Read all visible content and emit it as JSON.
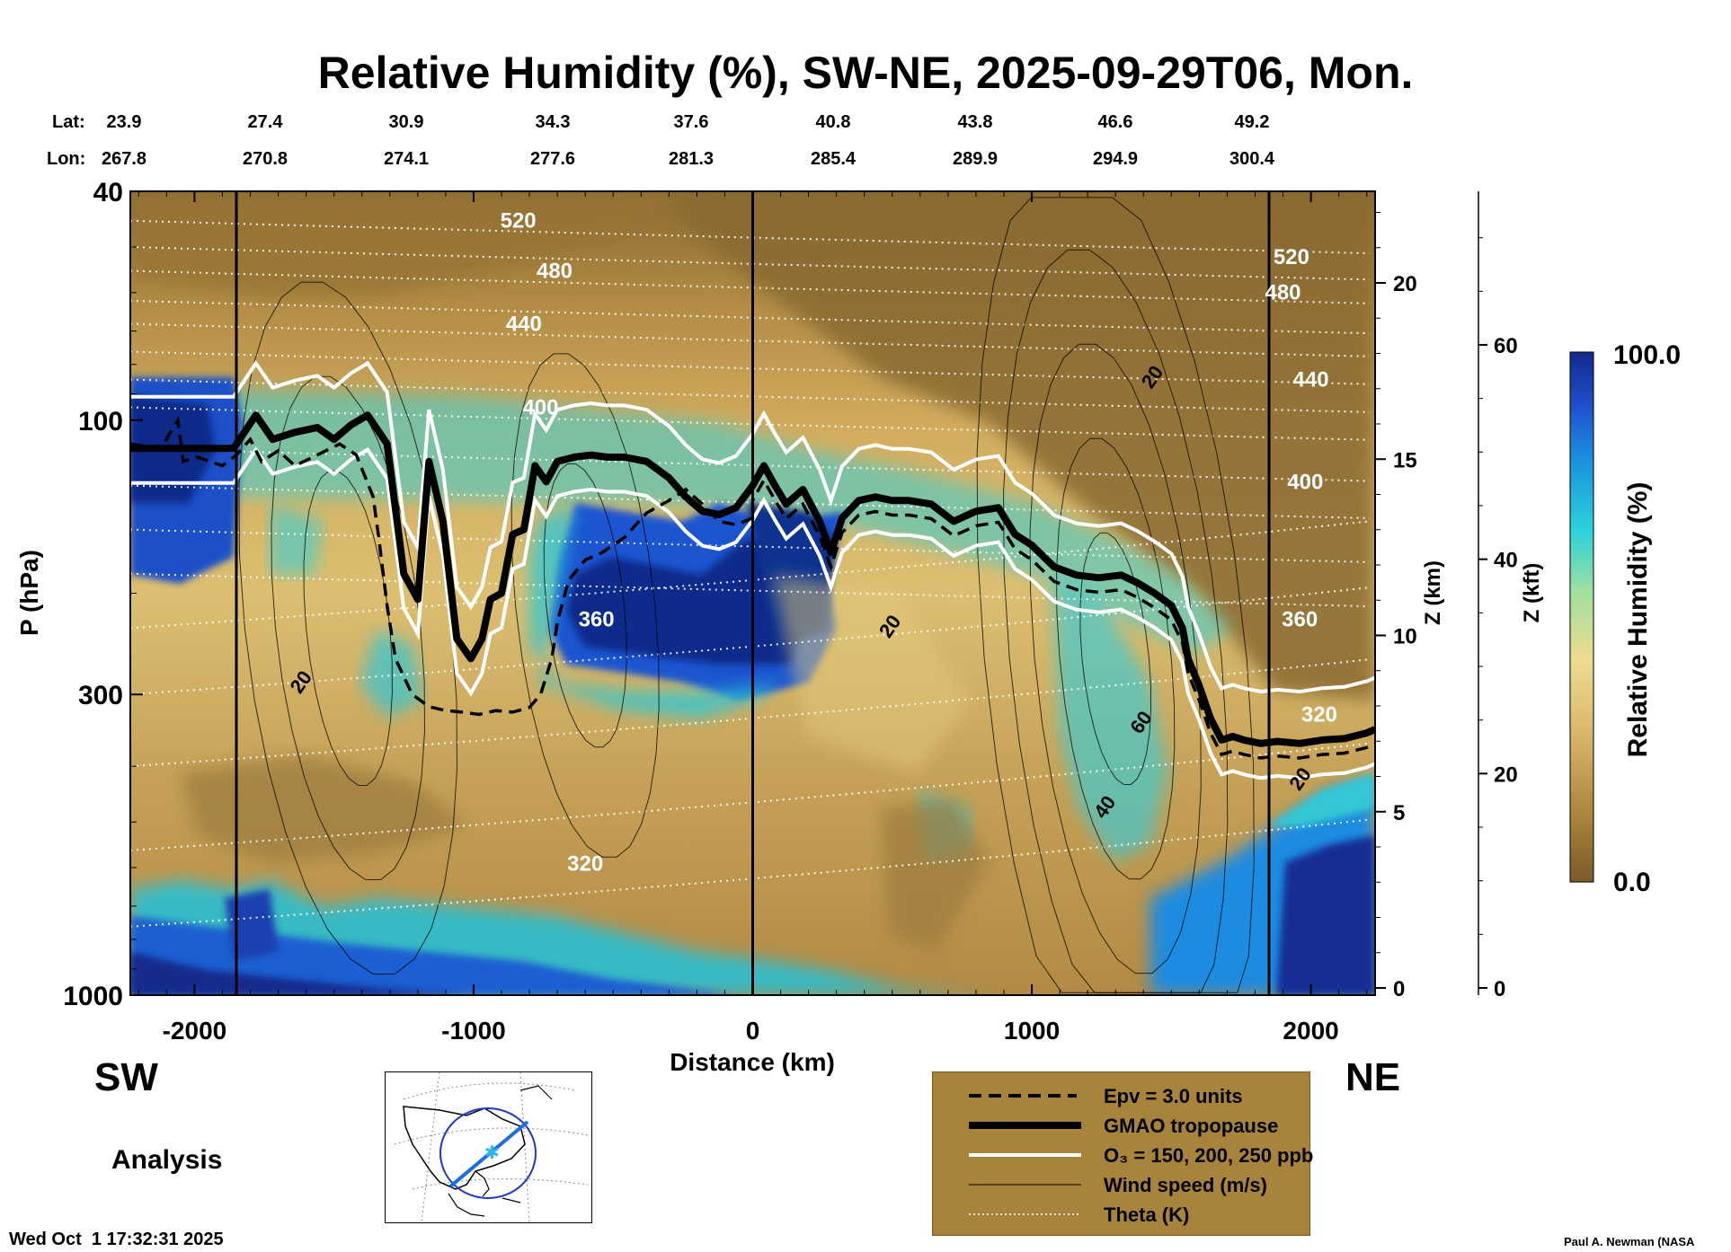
{
  "chart_data": {
    "type": "heatmap",
    "title": "Relative Humidity (%), SW-NE, 2025-09-29T06, Mon.",
    "xlabel": "Distance (km)",
    "ylabel": "P (hPa)",
    "y2label": "Z (km)",
    "y3label": "Z (kft)",
    "colorbar_label": "Relative Humidity (%)",
    "colorbar_max": "100.0",
    "colorbar_min": "0.0",
    "xlim": [
      -2230,
      2230
    ],
    "ylim": [
      1000,
      40
    ],
    "x_ticks": [
      "-2000",
      "-1000",
      "0",
      "1000",
      "2000"
    ],
    "x_tick_values": [
      -2000,
      -1000,
      0,
      1000,
      2000
    ],
    "y_ticks": [
      "40",
      "100",
      "300",
      "1000"
    ],
    "y_tick_values": [
      40,
      100,
      300,
      1000
    ],
    "z_km_ticks": [
      "0",
      "5",
      "10",
      "15",
      "20"
    ],
    "z_km_values": [
      0,
      5,
      10,
      15,
      20
    ],
    "z_kft_ticks": [
      "0",
      "20",
      "40",
      "60"
    ],
    "z_kft_values": [
      0,
      20,
      40,
      60
    ],
    "lat_label": "Lat:",
    "lon_label": "Lon:",
    "lat": [
      "23.9",
      "27.4",
      "30.9",
      "34.3",
      "37.6",
      "40.8",
      "43.8",
      "46.6",
      "49.2"
    ],
    "lon": [
      "267.8",
      "270.8",
      "274.1",
      "277.6",
      "281.3",
      "285.4",
      "289.9",
      "294.9",
      "300.4"
    ],
    "vertical_marker_lines_km": [
      -1850,
      0,
      1850
    ],
    "theta_labels": [
      {
        "text": "520",
        "x": -840,
        "p": 45
      },
      {
        "text": "480",
        "x": -710,
        "p": 55
      },
      {
        "text": "440",
        "x": -820,
        "p": 68
      },
      {
        "text": "400",
        "x": -760,
        "p": 95
      },
      {
        "text": "360",
        "x": -560,
        "p": 222
      },
      {
        "text": "320",
        "x": -600,
        "p": 590
      },
      {
        "text": "520",
        "x": 1930,
        "p": 52
      },
      {
        "text": "480",
        "x": 1900,
        "p": 60
      },
      {
        "text": "440",
        "x": 2000,
        "p": 85
      },
      {
        "text": "400",
        "x": 1980,
        "p": 128
      },
      {
        "text": "360",
        "x": 1960,
        "p": 222
      },
      {
        "text": "320",
        "x": 2030,
        "p": 325
      }
    ],
    "wind_labels": [
      {
        "text": "20",
        "x": -1620,
        "p": 285
      },
      {
        "text": "20",
        "x": 1430,
        "p": 84
      },
      {
        "text": "20",
        "x": 490,
        "p": 228
      },
      {
        "text": "60",
        "x": 1390,
        "p": 335
      },
      {
        "text": "40",
        "x": 1260,
        "p": 470
      },
      {
        "text": "20",
        "x": 1960,
        "p": 420
      }
    ],
    "tropopause": {
      "x": [
        -2230,
        -1860,
        -1780,
        -1720,
        -1640,
        -1560,
        -1500,
        -1440,
        -1380,
        -1310,
        -1250,
        -1200,
        -1160,
        -1110,
        -1060,
        -1010,
        -970,
        -940,
        -900,
        -860,
        -820,
        -780,
        -740,
        -700,
        -640,
        -580,
        -520,
        -460,
        -380,
        -300,
        -240,
        -180,
        -120,
        -60,
        0,
        40,
        80,
        120,
        180,
        240,
        280,
        320,
        380,
        440,
        500,
        560,
        640,
        720,
        800,
        880,
        940,
        1000,
        1080,
        1160,
        1240,
        1320,
        1380,
        1440,
        1500,
        1540,
        1560,
        1600,
        1640,
        1680,
        1720,
        1760,
        1820,
        1880,
        1960,
        2040,
        2120,
        2200,
        2230
      ],
      "p": [
        112,
        112,
        98,
        108,
        105,
        103,
        108,
        102,
        98,
        110,
        185,
        205,
        118,
        150,
        240,
        260,
        240,
        205,
        200,
        158,
        155,
        120,
        128,
        118,
        116,
        115,
        116,
        116,
        118,
        126,
        136,
        144,
        146,
        142,
        130,
        120,
        130,
        140,
        132,
        150,
        170,
        148,
        138,
        136,
        138,
        138,
        140,
        150,
        144,
        142,
        158,
        165,
        180,
        186,
        188,
        186,
        192,
        200,
        210,
        230,
        260,
        290,
        330,
        360,
        355,
        360,
        365,
        362,
        365,
        360,
        358,
        350,
        345
      ]
    },
    "pv_contour": {
      "x": [
        -2230,
        -2120,
        -2060,
        -2040,
        -1990,
        -1900,
        -1850,
        -1800,
        -1760,
        -1700,
        -1640,
        -1560,
        -1480,
        -1420,
        -1360,
        -1340,
        -1310,
        -1280,
        -1220,
        -1160,
        -1100,
        -1040,
        -980,
        -920,
        -860,
        -800,
        -760,
        -720,
        -700,
        -660,
        -600,
        -540,
        -460,
        -380,
        -300,
        -240,
        -180,
        -120,
        -60,
        0
      ],
      "p": [
        110,
        112,
        100,
        118,
        116,
        120,
        115,
        108,
        118,
        113,
        120,
        115,
        110,
        115,
        136,
        160,
        210,
        260,
        300,
        315,
        320,
        322,
        325,
        320,
        322,
        316,
        300,
        260,
        225,
        190,
        175,
        170,
        160,
        145,
        138,
        132,
        140,
        150,
        152,
        148
      ]
    },
    "legend": [
      {
        "label": "Epv = 3.0 units",
        "style": "dashed"
      },
      {
        "label": "GMAO tropopause",
        "style": "thick"
      },
      {
        "label": "O₃ = 150, 200, 250 ppb",
        "style": "white"
      },
      {
        "label": "Wind speed (m/s)",
        "style": "thin"
      },
      {
        "label": "Theta (K)",
        "style": "dotted"
      }
    ]
  },
  "labels": {
    "sw": "SW",
    "ne": "NE",
    "analysis": "Analysis",
    "timestamp": "Wed Oct  1 17:32:31 2025",
    "credit": "Paul A. Newman (NASA"
  },
  "colors": {
    "brown_dark": "#7a5a2a",
    "brown": "#a7833b",
    "tan": "#c9a55c",
    "yellow": "#e8cf80",
    "cyan": "#2cd3da",
    "blue": "#1f63d6",
    "navy": "#122a8c"
  }
}
